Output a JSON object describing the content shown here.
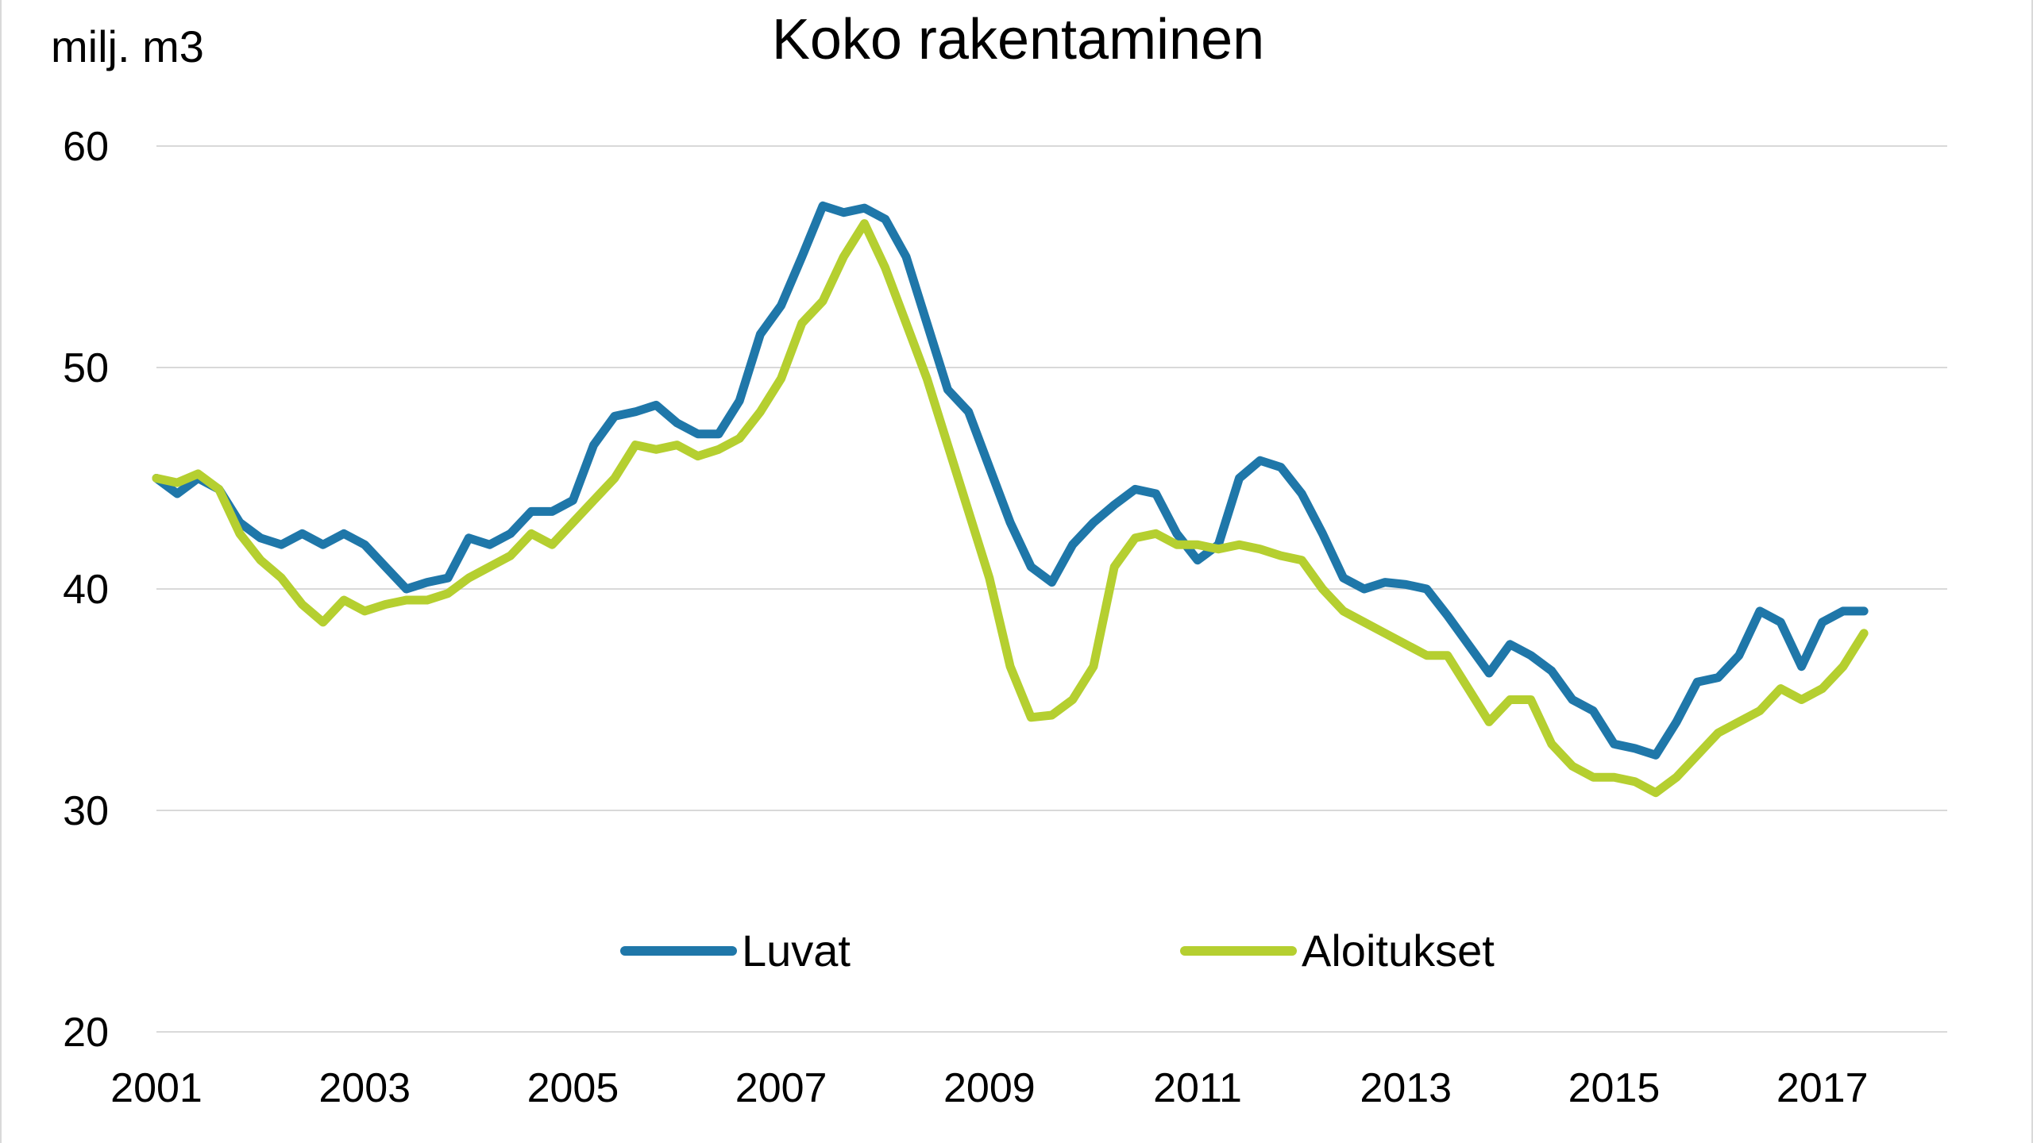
{
  "chart_data": {
    "type": "line",
    "title": "Koko rakentaminen",
    "unit_label": "milj. m3",
    "xlabel": "",
    "ylabel": "",
    "xlim": [
      2001,
      2018.2
    ],
    "ylim": [
      20,
      60
    ],
    "y_ticks": [
      "60",
      "50",
      "40",
      "30",
      "20"
    ],
    "x_ticks": [
      "2001",
      "2003",
      "2005",
      "2007",
      "2009",
      "2011",
      "2013",
      "2015",
      "2017"
    ],
    "grid": "horizontal",
    "legend_position": "bottom-center",
    "series": [
      {
        "name": "Luvat",
        "color": "#1f77a9",
        "x": [
          2001.0,
          2001.2,
          2001.4,
          2001.6,
          2001.8,
          2002.0,
          2002.2,
          2002.4,
          2002.6,
          2002.8,
          2003.0,
          2003.2,
          2003.4,
          2003.6,
          2003.8,
          2004.0,
          2004.2,
          2004.4,
          2004.6,
          2004.8,
          2005.0,
          2005.2,
          2005.4,
          2005.6,
          2005.8,
          2006.0,
          2006.2,
          2006.4,
          2006.6,
          2006.8,
          2007.0,
          2007.2,
          2007.4,
          2007.6,
          2007.8,
          2008.0,
          2008.2,
          2008.4,
          2008.6,
          2008.8,
          2009.0,
          2009.2,
          2009.4,
          2009.6,
          2009.8,
          2010.0,
          2010.2,
          2010.4,
          2010.6,
          2010.8,
          2011.0,
          2011.2,
          2011.4,
          2011.6,
          2011.8,
          2012.0,
          2012.2,
          2012.4,
          2012.6,
          2012.8,
          2013.0,
          2013.2,
          2013.4,
          2013.6,
          2013.8,
          2014.0,
          2014.2,
          2014.4,
          2014.6,
          2014.8,
          2015.0,
          2015.2,
          2015.4,
          2015.6,
          2015.8,
          2016.0,
          2016.2,
          2016.4,
          2016.6,
          2016.8,
          2017.0,
          2017.2,
          2017.4
        ],
        "values": [
          45.0,
          44.3,
          45.0,
          44.5,
          43.0,
          42.3,
          42.0,
          42.5,
          42.0,
          42.5,
          42.0,
          41.0,
          40.0,
          40.3,
          40.5,
          42.3,
          42.0,
          42.5,
          43.5,
          43.5,
          44.0,
          46.5,
          47.8,
          48.0,
          48.3,
          47.5,
          47.0,
          47.0,
          48.5,
          51.5,
          52.8,
          55.0,
          57.3,
          57.0,
          57.2,
          56.7,
          55.0,
          52.0,
          49.0,
          48.0,
          45.5,
          43.0,
          41.0,
          40.3,
          42.0,
          43.0,
          43.8,
          44.5,
          44.3,
          42.5,
          41.3,
          42.0,
          45.0,
          45.8,
          45.5,
          44.3,
          42.5,
          40.5,
          40.0,
          40.3,
          40.2,
          40.0,
          38.8,
          37.5,
          36.2,
          37.5,
          37.0,
          36.3,
          35.0,
          34.5,
          33.0,
          32.8,
          32.5,
          34.0,
          35.8,
          36.0,
          37.0,
          39.0,
          38.5,
          36.5,
          38.5,
          39.0,
          39.0
        ]
      },
      {
        "name": "Aloitukset",
        "color": "#b5cf30",
        "x": [
          2001.0,
          2001.2,
          2001.4,
          2001.6,
          2001.8,
          2002.0,
          2002.2,
          2002.4,
          2002.6,
          2002.8,
          2003.0,
          2003.2,
          2003.4,
          2003.6,
          2003.8,
          2004.0,
          2004.2,
          2004.4,
          2004.6,
          2004.8,
          2005.0,
          2005.2,
          2005.4,
          2005.6,
          2005.8,
          2006.0,
          2006.2,
          2006.4,
          2006.6,
          2006.8,
          2007.0,
          2007.2,
          2007.4,
          2007.6,
          2007.8,
          2008.0,
          2008.2,
          2008.4,
          2008.6,
          2008.8,
          2009.0,
          2009.2,
          2009.4,
          2009.6,
          2009.8,
          2010.0,
          2010.2,
          2010.4,
          2010.6,
          2010.8,
          2011.0,
          2011.2,
          2011.4,
          2011.6,
          2011.8,
          2012.0,
          2012.2,
          2012.4,
          2012.6,
          2012.8,
          2013.0,
          2013.2,
          2013.4,
          2013.6,
          2013.8,
          2014.0,
          2014.2,
          2014.4,
          2014.6,
          2014.8,
          2015.0,
          2015.2,
          2015.4,
          2015.6,
          2015.8,
          2016.0,
          2016.2,
          2016.4,
          2016.6,
          2016.8,
          2017.0,
          2017.2,
          2017.4
        ],
        "values": [
          45.0,
          44.8,
          45.2,
          44.5,
          42.5,
          41.3,
          40.5,
          39.3,
          38.5,
          39.5,
          39.0,
          39.3,
          39.5,
          39.5,
          39.8,
          40.5,
          41.0,
          41.5,
          42.5,
          42.0,
          43.0,
          44.0,
          45.0,
          46.5,
          46.3,
          46.5,
          46.0,
          46.3,
          46.8,
          48.0,
          49.5,
          52.0,
          53.0,
          55.0,
          56.5,
          54.5,
          52.0,
          49.5,
          46.5,
          43.5,
          40.5,
          36.5,
          34.2,
          34.3,
          35.0,
          36.5,
          41.0,
          42.3,
          42.5,
          42.0,
          42.0,
          41.8,
          42.0,
          41.8,
          41.5,
          41.3,
          40.0,
          39.0,
          38.5,
          38.0,
          37.5,
          37.0,
          37.0,
          35.5,
          34.0,
          35.0,
          35.0,
          33.0,
          32.0,
          31.5,
          31.5,
          31.3,
          30.8,
          31.5,
          32.5,
          33.5,
          34.0,
          34.5,
          35.5,
          35.0,
          35.5,
          36.5,
          38.0
        ]
      }
    ]
  }
}
